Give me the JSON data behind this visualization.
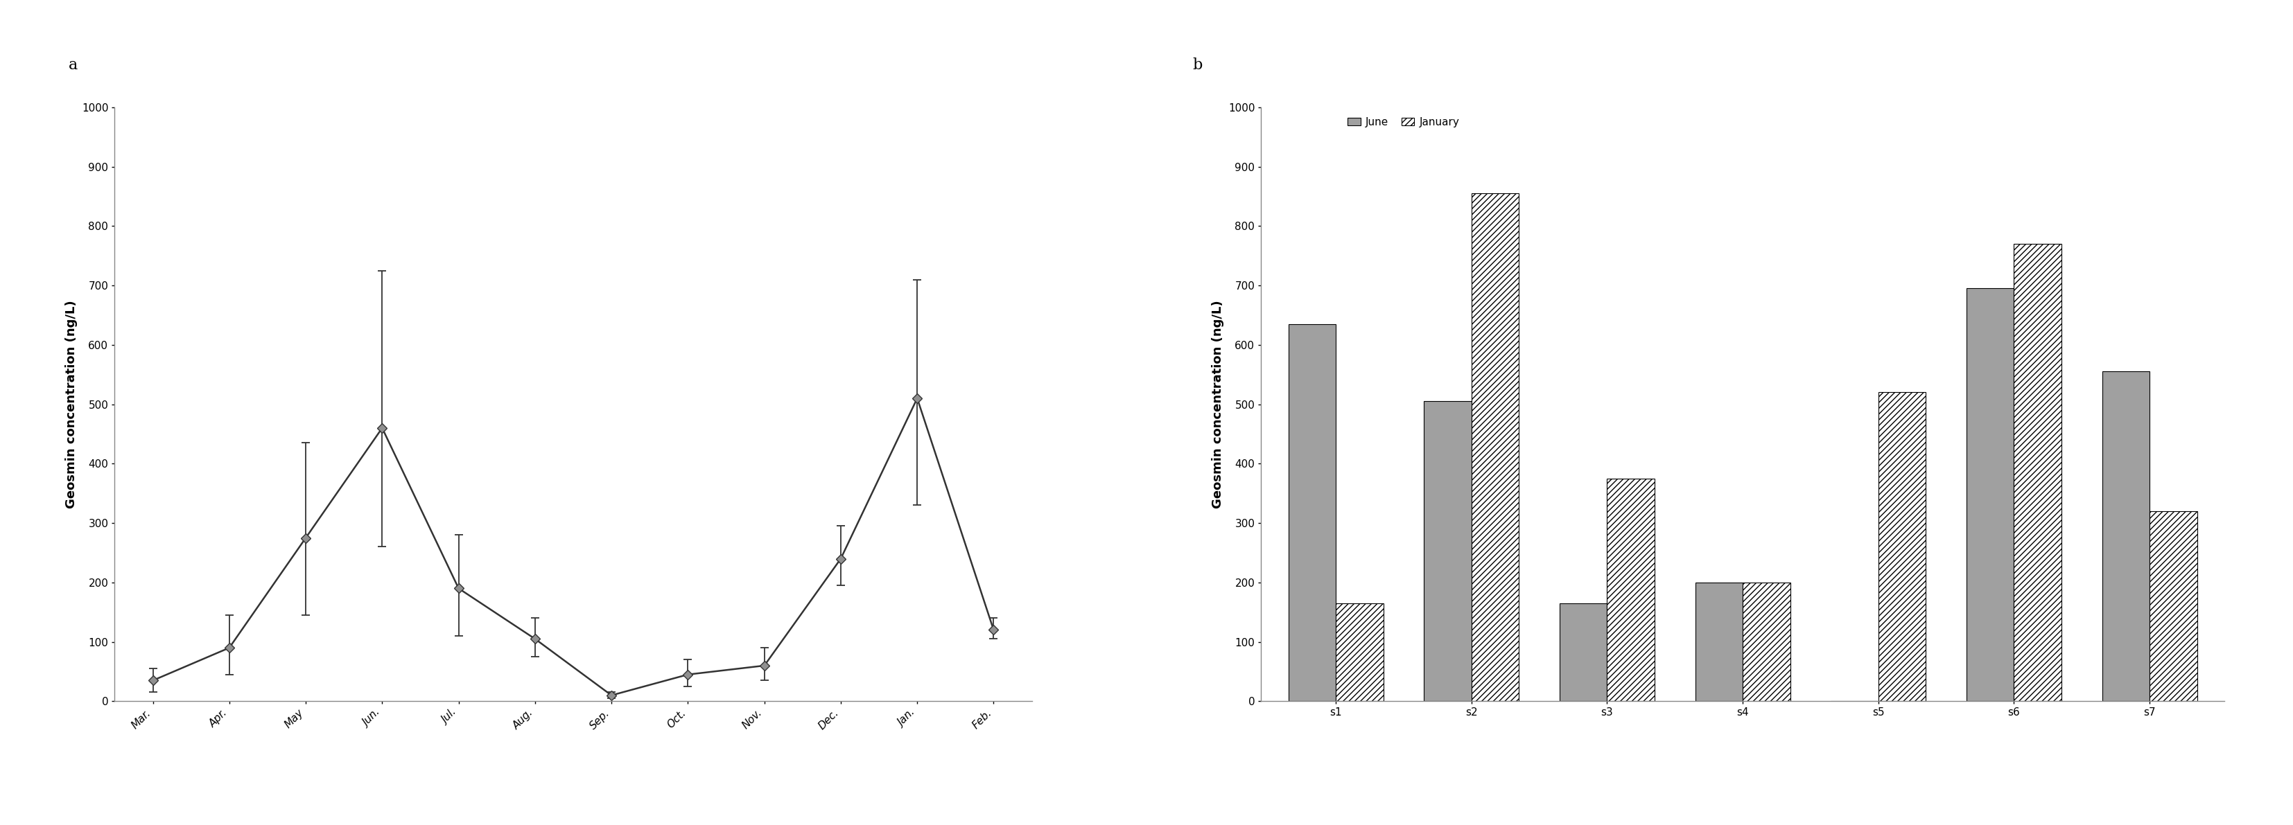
{
  "panel_a": {
    "months": [
      "Mar.",
      "Apr.",
      "May",
      "Jun.",
      "Jul.",
      "Aug.",
      "Sep.",
      "Oct.",
      "Nov.",
      "Dec.",
      "Jan.",
      "Feb."
    ],
    "values": [
      35,
      90,
      275,
      460,
      190,
      105,
      10,
      45,
      60,
      240,
      510,
      120
    ],
    "yerr_upper": [
      20,
      55,
      160,
      265,
      90,
      35,
      5,
      25,
      30,
      55,
      200,
      20
    ],
    "yerr_lower": [
      20,
      45,
      130,
      200,
      80,
      30,
      5,
      20,
      25,
      45,
      180,
      15
    ],
    "ylabel": "Geosmin concentration (ng/L)",
    "ylim": [
      0,
      1000
    ],
    "yticks": [
      0,
      100,
      200,
      300,
      400,
      500,
      600,
      700,
      800,
      900,
      1000
    ],
    "panel_label": "a"
  },
  "panel_b": {
    "sites": [
      "s1",
      "s2",
      "s3",
      "s4",
      "s5",
      "s6",
      "s7"
    ],
    "june_values": [
      635,
      505,
      165,
      200,
      0,
      695,
      555
    ],
    "january_values": [
      165,
      855,
      375,
      200,
      520,
      770,
      320
    ],
    "ylabel": "Geosmin concentration (ng/L)",
    "ylim": [
      0,
      1000
    ],
    "yticks": [
      0,
      100,
      200,
      300,
      400,
      500,
      600,
      700,
      800,
      900,
      1000
    ],
    "panel_label": "b",
    "june_color": "#a0a0a0",
    "january_color": "#ffffff",
    "june_label": "June",
    "january_label": "January"
  },
  "line_color": "#333333",
  "marker_color": "#909090",
  "background_color": "#ffffff",
  "axis_label_fontsize": 13,
  "tick_fontsize": 11,
  "panel_label_fontsize": 16,
  "legend_fontsize": 11
}
